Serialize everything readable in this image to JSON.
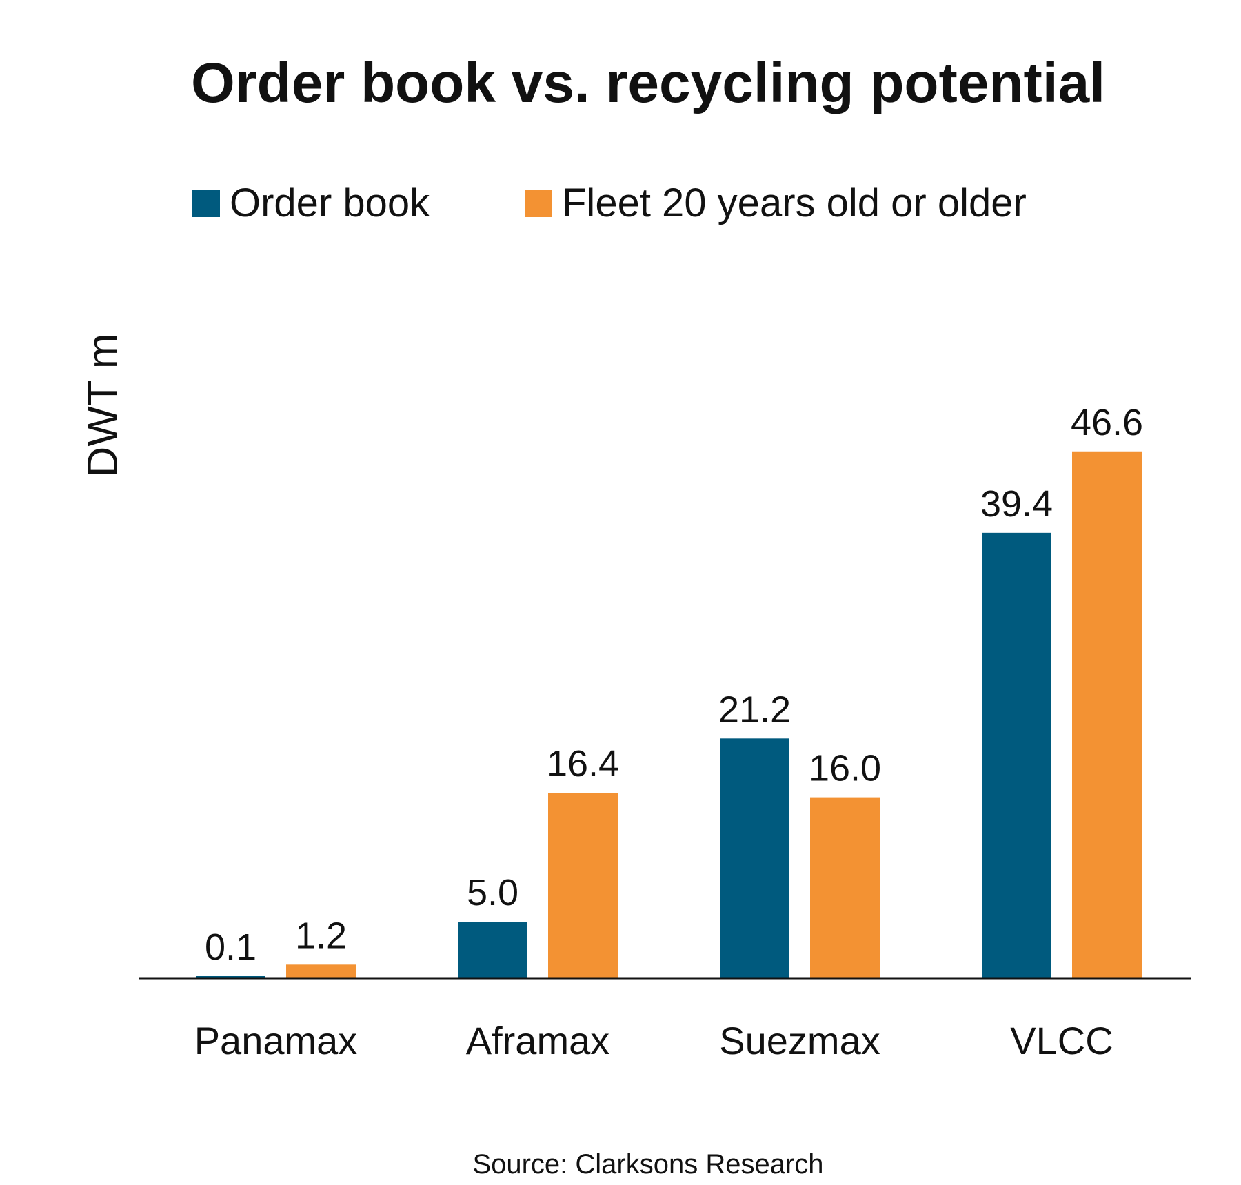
{
  "chart_data": {
    "type": "bar",
    "title": "Order book vs. recycling potential",
    "ylabel": "DWT m",
    "xlabel": "",
    "categories": [
      "Panamax",
      "Aframax",
      "Suezmax",
      "VLCC"
    ],
    "series": [
      {
        "name": "Order book",
        "color": "#005a7e",
        "values": [
          0.1,
          5.0,
          21.2,
          39.4
        ],
        "labels": [
          "0.1",
          "5.0",
          "21.2",
          "39.4"
        ]
      },
      {
        "name": "Fleet 20 years old or older",
        "color": "#f39233",
        "values": [
          1.2,
          16.4,
          16.0,
          46.6
        ],
        "labels": [
          "1.2",
          "16.4",
          "16.0",
          "46.6"
        ]
      }
    ],
    "ylim": [
      0,
      50
    ],
    "grid": false,
    "legend_position": "top",
    "source": "Source: Clarksons Research"
  }
}
